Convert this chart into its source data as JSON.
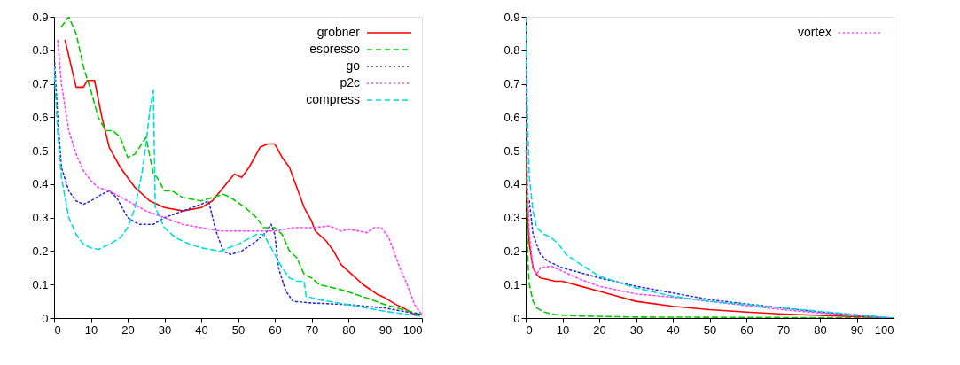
{
  "chart_data": [
    {
      "type": "line",
      "xlim": [
        0,
        100
      ],
      "xticks": [
        0,
        10,
        20,
        30,
        40,
        50,
        60,
        70,
        80,
        90,
        100
      ],
      "ylim": [
        0,
        0.9
      ],
      "yticks": [
        0,
        0.1,
        0.2,
        0.3,
        0.4,
        0.5,
        0.6,
        0.7,
        0.8,
        0.9
      ],
      "legend": "top right",
      "grid": false,
      "series": [
        {
          "name": "grobner",
          "color": "#ff0000",
          "line_style": "solid",
          "x": [
            3,
            6,
            8,
            9,
            11,
            13,
            15,
            18,
            22,
            26,
            30,
            35,
            40,
            43,
            46,
            49,
            51,
            53,
            56,
            58,
            60,
            62,
            64,
            66,
            68,
            70,
            71,
            74,
            76,
            78,
            80,
            84,
            88,
            90,
            93,
            95,
            98,
            100
          ],
          "values": [
            0.83,
            0.69,
            0.69,
            0.71,
            0.71,
            0.6,
            0.51,
            0.45,
            0.39,
            0.35,
            0.33,
            0.32,
            0.33,
            0.35,
            0.39,
            0.43,
            0.42,
            0.45,
            0.51,
            0.52,
            0.52,
            0.48,
            0.45,
            0.39,
            0.33,
            0.29,
            0.26,
            0.23,
            0.2,
            0.16,
            0.14,
            0.1,
            0.07,
            0.06,
            0.04,
            0.03,
            0.01,
            0.01
          ]
        },
        {
          "name": "espresso",
          "color": "#00cc00",
          "line_style": "dashed",
          "x": [
            2,
            4,
            6,
            8,
            10,
            12,
            14,
            16,
            18,
            20,
            22,
            25,
            27,
            28,
            30,
            32,
            35,
            40,
            43,
            46,
            48,
            52,
            55,
            57,
            60,
            62,
            64,
            66,
            68,
            70,
            72,
            78,
            85,
            90,
            95,
            100
          ],
          "values": [
            0.87,
            0.9,
            0.85,
            0.75,
            0.68,
            0.6,
            0.56,
            0.56,
            0.54,
            0.48,
            0.49,
            0.54,
            0.43,
            0.42,
            0.38,
            0.38,
            0.36,
            0.35,
            0.36,
            0.37,
            0.36,
            0.33,
            0.3,
            0.27,
            0.27,
            0.25,
            0.2,
            0.18,
            0.13,
            0.12,
            0.1,
            0.085,
            0.06,
            0.04,
            0.025,
            0.01
          ]
        },
        {
          "name": "go",
          "color": "#3030d0",
          "line_style": "dotted",
          "x": [
            0,
            1,
            2,
            4,
            6,
            8,
            10,
            13,
            15,
            17,
            20,
            23,
            27,
            30,
            35,
            40,
            42,
            44,
            46,
            48,
            51,
            55,
            58,
            59,
            60,
            61,
            63,
            65,
            70,
            80,
            90,
            100
          ],
          "values": [
            0.79,
            0.6,
            0.45,
            0.38,
            0.35,
            0.34,
            0.35,
            0.37,
            0.38,
            0.36,
            0.3,
            0.28,
            0.28,
            0.3,
            0.32,
            0.34,
            0.35,
            0.26,
            0.2,
            0.19,
            0.2,
            0.23,
            0.26,
            0.28,
            0.25,
            0.15,
            0.08,
            0.05,
            0.045,
            0.04,
            0.03,
            0.01
          ]
        },
        {
          "name": "p2c",
          "color": "#ff44ff",
          "line_style": "dotted",
          "x": [
            1,
            2,
            4,
            6,
            8,
            10,
            12,
            15,
            20,
            25,
            30,
            35,
            40,
            45,
            50,
            55,
            60,
            65,
            70,
            75,
            78,
            80,
            83,
            85,
            87,
            89,
            91,
            94,
            96,
            98,
            100
          ],
          "values": [
            0.83,
            0.7,
            0.56,
            0.49,
            0.44,
            0.41,
            0.39,
            0.38,
            0.35,
            0.32,
            0.3,
            0.28,
            0.27,
            0.26,
            0.26,
            0.26,
            0.26,
            0.27,
            0.27,
            0.275,
            0.26,
            0.265,
            0.26,
            0.255,
            0.27,
            0.27,
            0.24,
            0.15,
            0.1,
            0.04,
            0.01
          ]
        },
        {
          "name": "compress",
          "color": "#00dddd",
          "line_style": "dashed",
          "x": [
            0,
            1,
            2,
            4,
            6,
            8,
            10,
            12,
            15,
            18,
            20,
            22,
            24,
            25,
            26,
            27,
            27.5,
            30,
            33,
            37,
            40,
            45,
            50,
            55,
            57,
            60,
            62,
            64,
            66,
            68,
            68.5,
            72,
            80,
            90,
            100
          ],
          "values": [
            0.75,
            0.55,
            0.42,
            0.3,
            0.25,
            0.22,
            0.21,
            0.205,
            0.22,
            0.24,
            0.27,
            0.33,
            0.44,
            0.52,
            0.62,
            0.68,
            0.33,
            0.27,
            0.24,
            0.22,
            0.21,
            0.2,
            0.22,
            0.25,
            0.25,
            0.19,
            0.15,
            0.12,
            0.11,
            0.11,
            0.065,
            0.055,
            0.04,
            0.02,
            0.005
          ]
        }
      ]
    },
    {
      "type": "line",
      "xlim": [
        0,
        100
      ],
      "xticks": [
        0,
        10,
        20,
        30,
        40,
        50,
        60,
        70,
        80,
        90,
        100
      ],
      "ylim": [
        0,
        0.9
      ],
      "yticks": [
        0,
        0.1,
        0.2,
        0.3,
        0.4,
        0.5,
        0.6,
        0.7,
        0.8,
        0.9
      ],
      "legend": "top right",
      "grid": false,
      "series": [
        {
          "color": "#ff0000",
          "line_style": "solid",
          "x": [
            0,
            0.5,
            1,
            2,
            3,
            4,
            6,
            8,
            10,
            15,
            20,
            25,
            30,
            40,
            50,
            60,
            70,
            80,
            90,
            100
          ],
          "values": [
            0.5,
            0.3,
            0.22,
            0.15,
            0.13,
            0.12,
            0.115,
            0.11,
            0.11,
            0.095,
            0.08,
            0.065,
            0.05,
            0.035,
            0.025,
            0.018,
            0.012,
            0.008,
            0.004,
            0
          ]
        },
        {
          "color": "#00cc00",
          "line_style": "dashed",
          "x": [
            0,
            0.3,
            0.7,
            1,
            2,
            3,
            5,
            8,
            15,
            30,
            60,
            100
          ],
          "values": [
            0.9,
            0.3,
            0.15,
            0.1,
            0.05,
            0.03,
            0.018,
            0.01,
            0.006,
            0.003,
            0.002,
            0
          ]
        },
        {
          "color": "#3030d0",
          "line_style": "dotted",
          "x": [
            1,
            2,
            4,
            6,
            10,
            15,
            20,
            30,
            40,
            50,
            60,
            70,
            80,
            90,
            100
          ],
          "values": [
            0.35,
            0.25,
            0.19,
            0.17,
            0.15,
            0.135,
            0.12,
            0.095,
            0.075,
            0.055,
            0.042,
            0.03,
            0.018,
            0.008,
            0
          ]
        },
        {
          "name": "vortex",
          "color": "#ff44ff",
          "line_style": "dotted",
          "x": [
            0,
            0.5,
            1,
            2,
            3,
            4,
            7,
            10,
            15,
            20,
            30,
            40,
            50,
            60,
            70,
            80,
            90,
            100
          ],
          "values": [
            0.85,
            0.4,
            0.25,
            0.15,
            0.13,
            0.15,
            0.155,
            0.14,
            0.115,
            0.095,
            0.072,
            0.062,
            0.05,
            0.037,
            0.025,
            0.015,
            0.007,
            0
          ]
        },
        {
          "color": "#00dddd",
          "line_style": "dashed",
          "x": [
            0,
            0.5,
            1,
            2,
            3,
            5,
            7,
            9,
            11,
            15,
            20,
            30,
            40,
            50,
            60,
            70,
            80,
            90,
            100
          ],
          "values": [
            0.9,
            0.6,
            0.42,
            0.32,
            0.27,
            0.25,
            0.24,
            0.22,
            0.19,
            0.16,
            0.125,
            0.09,
            0.065,
            0.05,
            0.04,
            0.03,
            0.02,
            0.01,
            0
          ]
        }
      ]
    }
  ]
}
